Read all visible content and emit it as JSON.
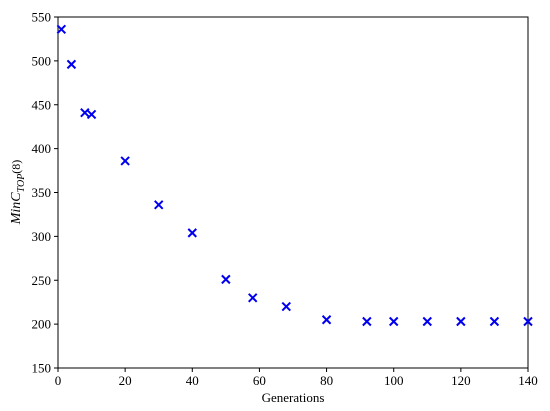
{
  "chart_data": {
    "type": "scatter",
    "xlabel": "Generations",
    "ylabel": {
      "main": "MinC",
      "sub": "TOP",
      "suffix": "(8)"
    },
    "series": [
      {
        "color": "#0000ee",
        "marker": "x",
        "x": [
          1,
          4,
          8,
          10,
          20,
          30,
          40,
          50,
          58,
          68,
          80,
          92,
          100,
          110,
          120,
          130,
          140
        ],
        "values": [
          536,
          496,
          441,
          439,
          386,
          336,
          304,
          251,
          230,
          220,
          205,
          203,
          203,
          203,
          203,
          203,
          203
        ]
      }
    ],
    "xlim": [
      0,
      140
    ],
    "xticks": [
      0,
      20,
      40,
      60,
      80,
      100,
      120,
      140
    ],
    "ylim": [
      150,
      550
    ],
    "yticks": [
      150,
      200,
      250,
      300,
      350,
      400,
      450,
      500,
      550
    ],
    "grid": false
  }
}
